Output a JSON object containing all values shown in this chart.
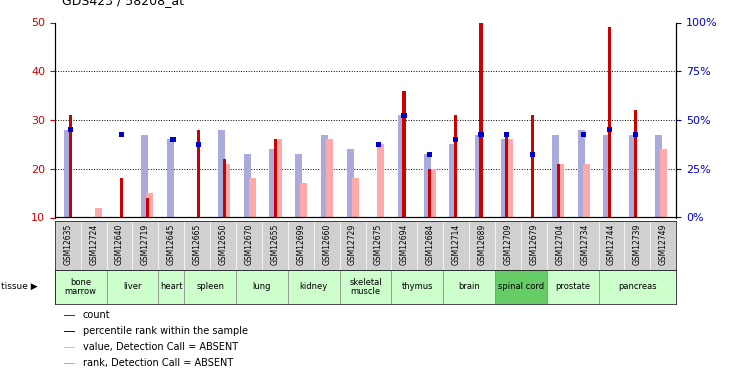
{
  "title": "GDS423 / 58208_at",
  "samples": [
    "GSM12635",
    "GSM12724",
    "GSM12640",
    "GSM12719",
    "GSM12645",
    "GSM12665",
    "GSM12650",
    "GSM12670",
    "GSM12655",
    "GSM12699",
    "GSM12660",
    "GSM12729",
    "GSM12675",
    "GSM12694",
    "GSM12684",
    "GSM12714",
    "GSM12689",
    "GSM12709",
    "GSM12679",
    "GSM12704",
    "GSM12734",
    "GSM12744",
    "GSM12739",
    "GSM12749"
  ],
  "tissue_spans": [
    {
      "name": "bone\nmarrow",
      "start": 0,
      "end": 1,
      "color": "#ccffcc"
    },
    {
      "name": "liver",
      "start": 2,
      "end": 3,
      "color": "#ccffcc"
    },
    {
      "name": "heart",
      "start": 4,
      "end": 4,
      "color": "#ccffcc"
    },
    {
      "name": "spleen",
      "start": 5,
      "end": 6,
      "color": "#ccffcc"
    },
    {
      "name": "lung",
      "start": 7,
      "end": 8,
      "color": "#ccffcc"
    },
    {
      "name": "kidney",
      "start": 9,
      "end": 10,
      "color": "#ccffcc"
    },
    {
      "name": "skeletal\nmuscle",
      "start": 11,
      "end": 12,
      "color": "#ccffcc"
    },
    {
      "name": "thymus",
      "start": 13,
      "end": 14,
      "color": "#ccffcc"
    },
    {
      "name": "brain",
      "start": 15,
      "end": 16,
      "color": "#ccffcc"
    },
    {
      "name": "spinal cord",
      "start": 17,
      "end": 18,
      "color": "#66cc66"
    },
    {
      "name": "prostate",
      "start": 19,
      "end": 20,
      "color": "#ccffcc"
    },
    {
      "name": "pancreas",
      "start": 21,
      "end": 23,
      "color": "#ccffcc"
    }
  ],
  "count_values": [
    31,
    0,
    18,
    14,
    0,
    28,
    22,
    0,
    26,
    0,
    0,
    0,
    0,
    36,
    20,
    31,
    50,
    27,
    31,
    21,
    0,
    49,
    32,
    0
  ],
  "pink_values": [
    0,
    12,
    0,
    15,
    0,
    0,
    21,
    18,
    26,
    17,
    26,
    18,
    25,
    0,
    20,
    0,
    0,
    26,
    0,
    21,
    21,
    0,
    0,
    24
  ],
  "blue_sq_values": [
    28,
    0,
    27,
    0,
    26,
    25,
    0,
    0,
    0,
    0,
    0,
    0,
    25,
    31,
    23,
    26,
    27,
    27,
    23,
    0,
    27,
    28,
    27,
    0
  ],
  "lavender_values": [
    28,
    0,
    0,
    27,
    26,
    0,
    28,
    23,
    24,
    23,
    27,
    24,
    0,
    31,
    23,
    25,
    27,
    26,
    0,
    27,
    28,
    27,
    27,
    27
  ],
  "ylim_left": [
    10,
    50
  ],
  "ylim_right": [
    0,
    100
  ],
  "yticks_left": [
    10,
    20,
    30,
    40,
    50
  ],
  "yticks_right": [
    0,
    25,
    50,
    75,
    100
  ],
  "color_red": "#cc0000",
  "color_pink": "#ffaaaa",
  "color_blue": "#0000cc",
  "color_lavender": "#aaaadd",
  "bg_sample_row": "#d0d0d0",
  "bg_tissue_row": "#ccffcc"
}
